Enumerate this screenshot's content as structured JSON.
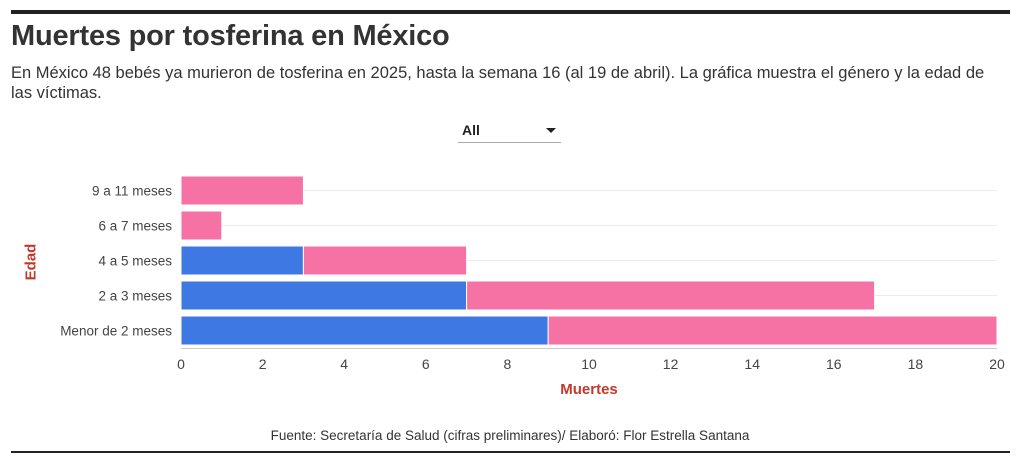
{
  "header": {
    "title": "Muertes por tosferina en México",
    "subtitle": "En México 48 bebés ya murieron de tosferina en 2025, hasta la semana 16 (al 19 de abril). La gráfica muestra el género y la edad de las víctimas."
  },
  "filter": {
    "selected": "All"
  },
  "colors": {
    "blue": "#3e78e3",
    "pink": "#f672a4",
    "axis_title": "#c0392b"
  },
  "chart_data": {
    "type": "bar",
    "orientation": "horizontal",
    "stacked": true,
    "categories": [
      "9 a 11 meses",
      "6 a 7 meses",
      "4 a 5 meses",
      "2 a 3 meses",
      "Menor de 2 meses"
    ],
    "series": [
      {
        "name": "serie azul",
        "color": "#3e78e3",
        "values": [
          0,
          0,
          3,
          7,
          9
        ]
      },
      {
        "name": "serie rosa",
        "color": "#f672a4",
        "values": [
          3,
          1,
          4,
          10,
          11
        ]
      }
    ],
    "xlim": [
      0,
      20
    ],
    "xticks": [
      0,
      2,
      4,
      6,
      8,
      10,
      12,
      14,
      16,
      18,
      20
    ],
    "xlabel": "Muertes",
    "ylabel": "Edad",
    "grid": true
  },
  "footer": {
    "source": "Fuente: Secretaría de Salud (cifras preliminares)/ Elaboró: Flor Estrella Santana"
  }
}
